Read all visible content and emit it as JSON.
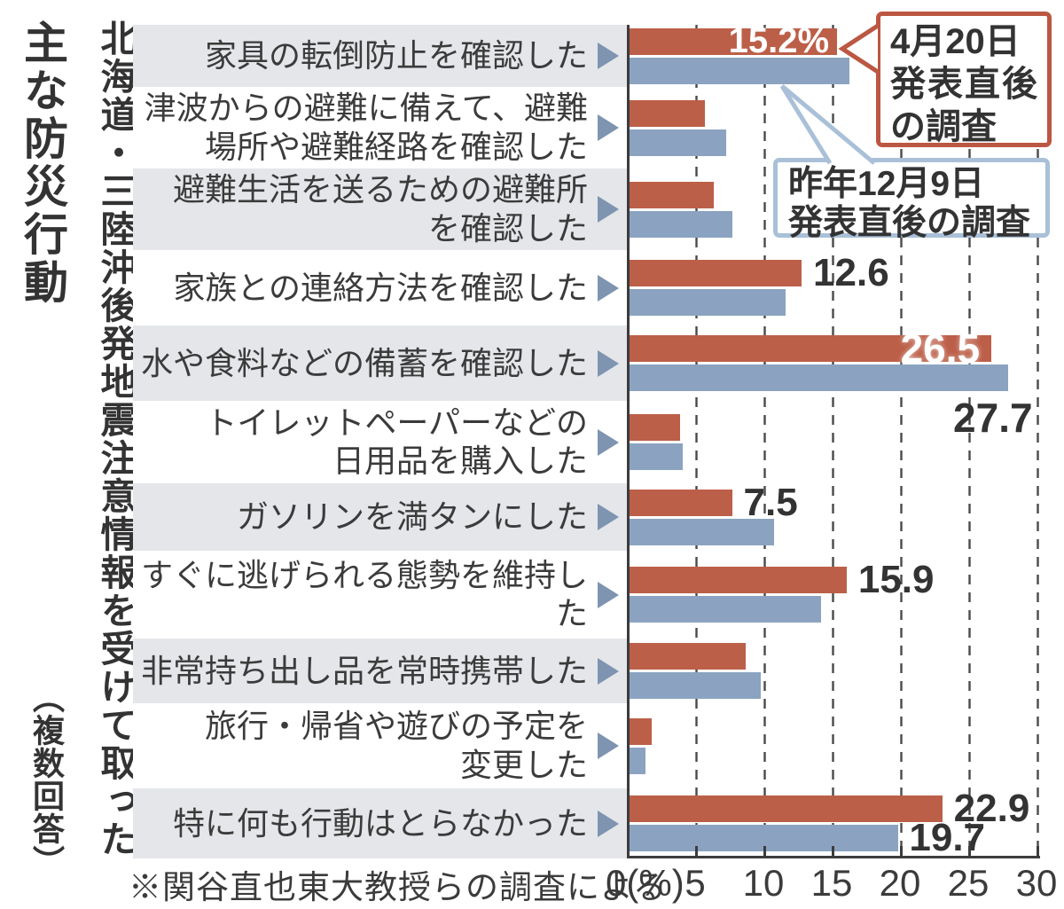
{
  "title": {
    "main": "北海道・三陸沖後発地震注意情報を受けて取った",
    "sub": "主な防災行動",
    "note": "（複数回答）"
  },
  "legend": {
    "april": {
      "line1": "4月20日",
      "line2": "発表直後",
      "line3": "の調査"
    },
    "december": {
      "line1": "昨年12月9日",
      "line2": "発表直後の調査"
    }
  },
  "axis": {
    "zero_label": "0(%)",
    "ticks": [
      5,
      10,
      15,
      20,
      25,
      30
    ],
    "max": 30
  },
  "footnote": "※関谷直也東大教授らの調査による",
  "colors": {
    "april_bar": "#bc5f48",
    "december_bar": "#8ba3c1",
    "april_border": "#bb5742",
    "december_border": "#a9c0d8",
    "band": "#e4e6e9",
    "axis": "#3c3c3c",
    "grid": "#4a4a4a",
    "marker": "#7e94b0"
  },
  "chart_data": {
    "type": "bar",
    "orientation": "horizontal",
    "title": "北海道・三陸沖後発地震注意情報を受けて取った主な防災行動（複数回答）",
    "xlabel": "(%)",
    "xlim": [
      0,
      30
    ],
    "grid": "dashed vertical every 5",
    "legend_position": "top-right callout boxes",
    "series_names": [
      "4月20日発表直後の調査",
      "昨年12月9日発表直後の調査"
    ],
    "rows": [
      {
        "label": [
          "家具の転倒防止を確認した"
        ],
        "apr": 15.2,
        "dec": 16.1,
        "apr_text": "15.2%",
        "apr_style": "inside"
      },
      {
        "label": [
          "津波からの避難に備えて、避難",
          "場所や避難経路を確認した"
        ],
        "apr": 5.5,
        "dec": 7.1
      },
      {
        "label": [
          "避難生活を送るための避難所",
          "を確認した"
        ],
        "apr": 6.2,
        "dec": 7.5
      },
      {
        "label": [
          "家族との連絡方法を確認した"
        ],
        "apr": 12.6,
        "dec": 11.4,
        "apr_text": "12.6",
        "apr_style": "after"
      },
      {
        "label": [
          "水や食料などの備蓄を確認した"
        ],
        "apr": 26.5,
        "dec": 27.7,
        "apr_text": "26.5",
        "apr_style": "inside-large",
        "dec_text": "27.7",
        "dec_style": "below"
      },
      {
        "label": [
          "トイレットペーパーなどの",
          "日用品を購入した"
        ],
        "apr": 3.7,
        "dec": 3.9
      },
      {
        "label": [
          "ガソリンを満タンにした"
        ],
        "apr": 7.5,
        "dec": 10.6,
        "apr_text": "7.5",
        "apr_style": "after"
      },
      {
        "label": [
          "すぐに逃げられる態勢を維持した"
        ],
        "apr": 15.9,
        "dec": 14.0,
        "apr_text": "15.9",
        "apr_style": "after"
      },
      {
        "label": [
          "非常持ち出し品を常時携帯した"
        ],
        "apr": 8.5,
        "dec": 9.6
      },
      {
        "label": [
          "旅行・帰省や遊びの予定を",
          "変更した"
        ],
        "apr": 1.6,
        "dec": 1.2
      },
      {
        "label": [
          "特に何も行動はとらなかった"
        ],
        "apr": 22.9,
        "dec": 19.7,
        "apr_text": "22.9",
        "apr_style": "after",
        "dec_text": "19.7",
        "dec_style": "after"
      }
    ]
  }
}
